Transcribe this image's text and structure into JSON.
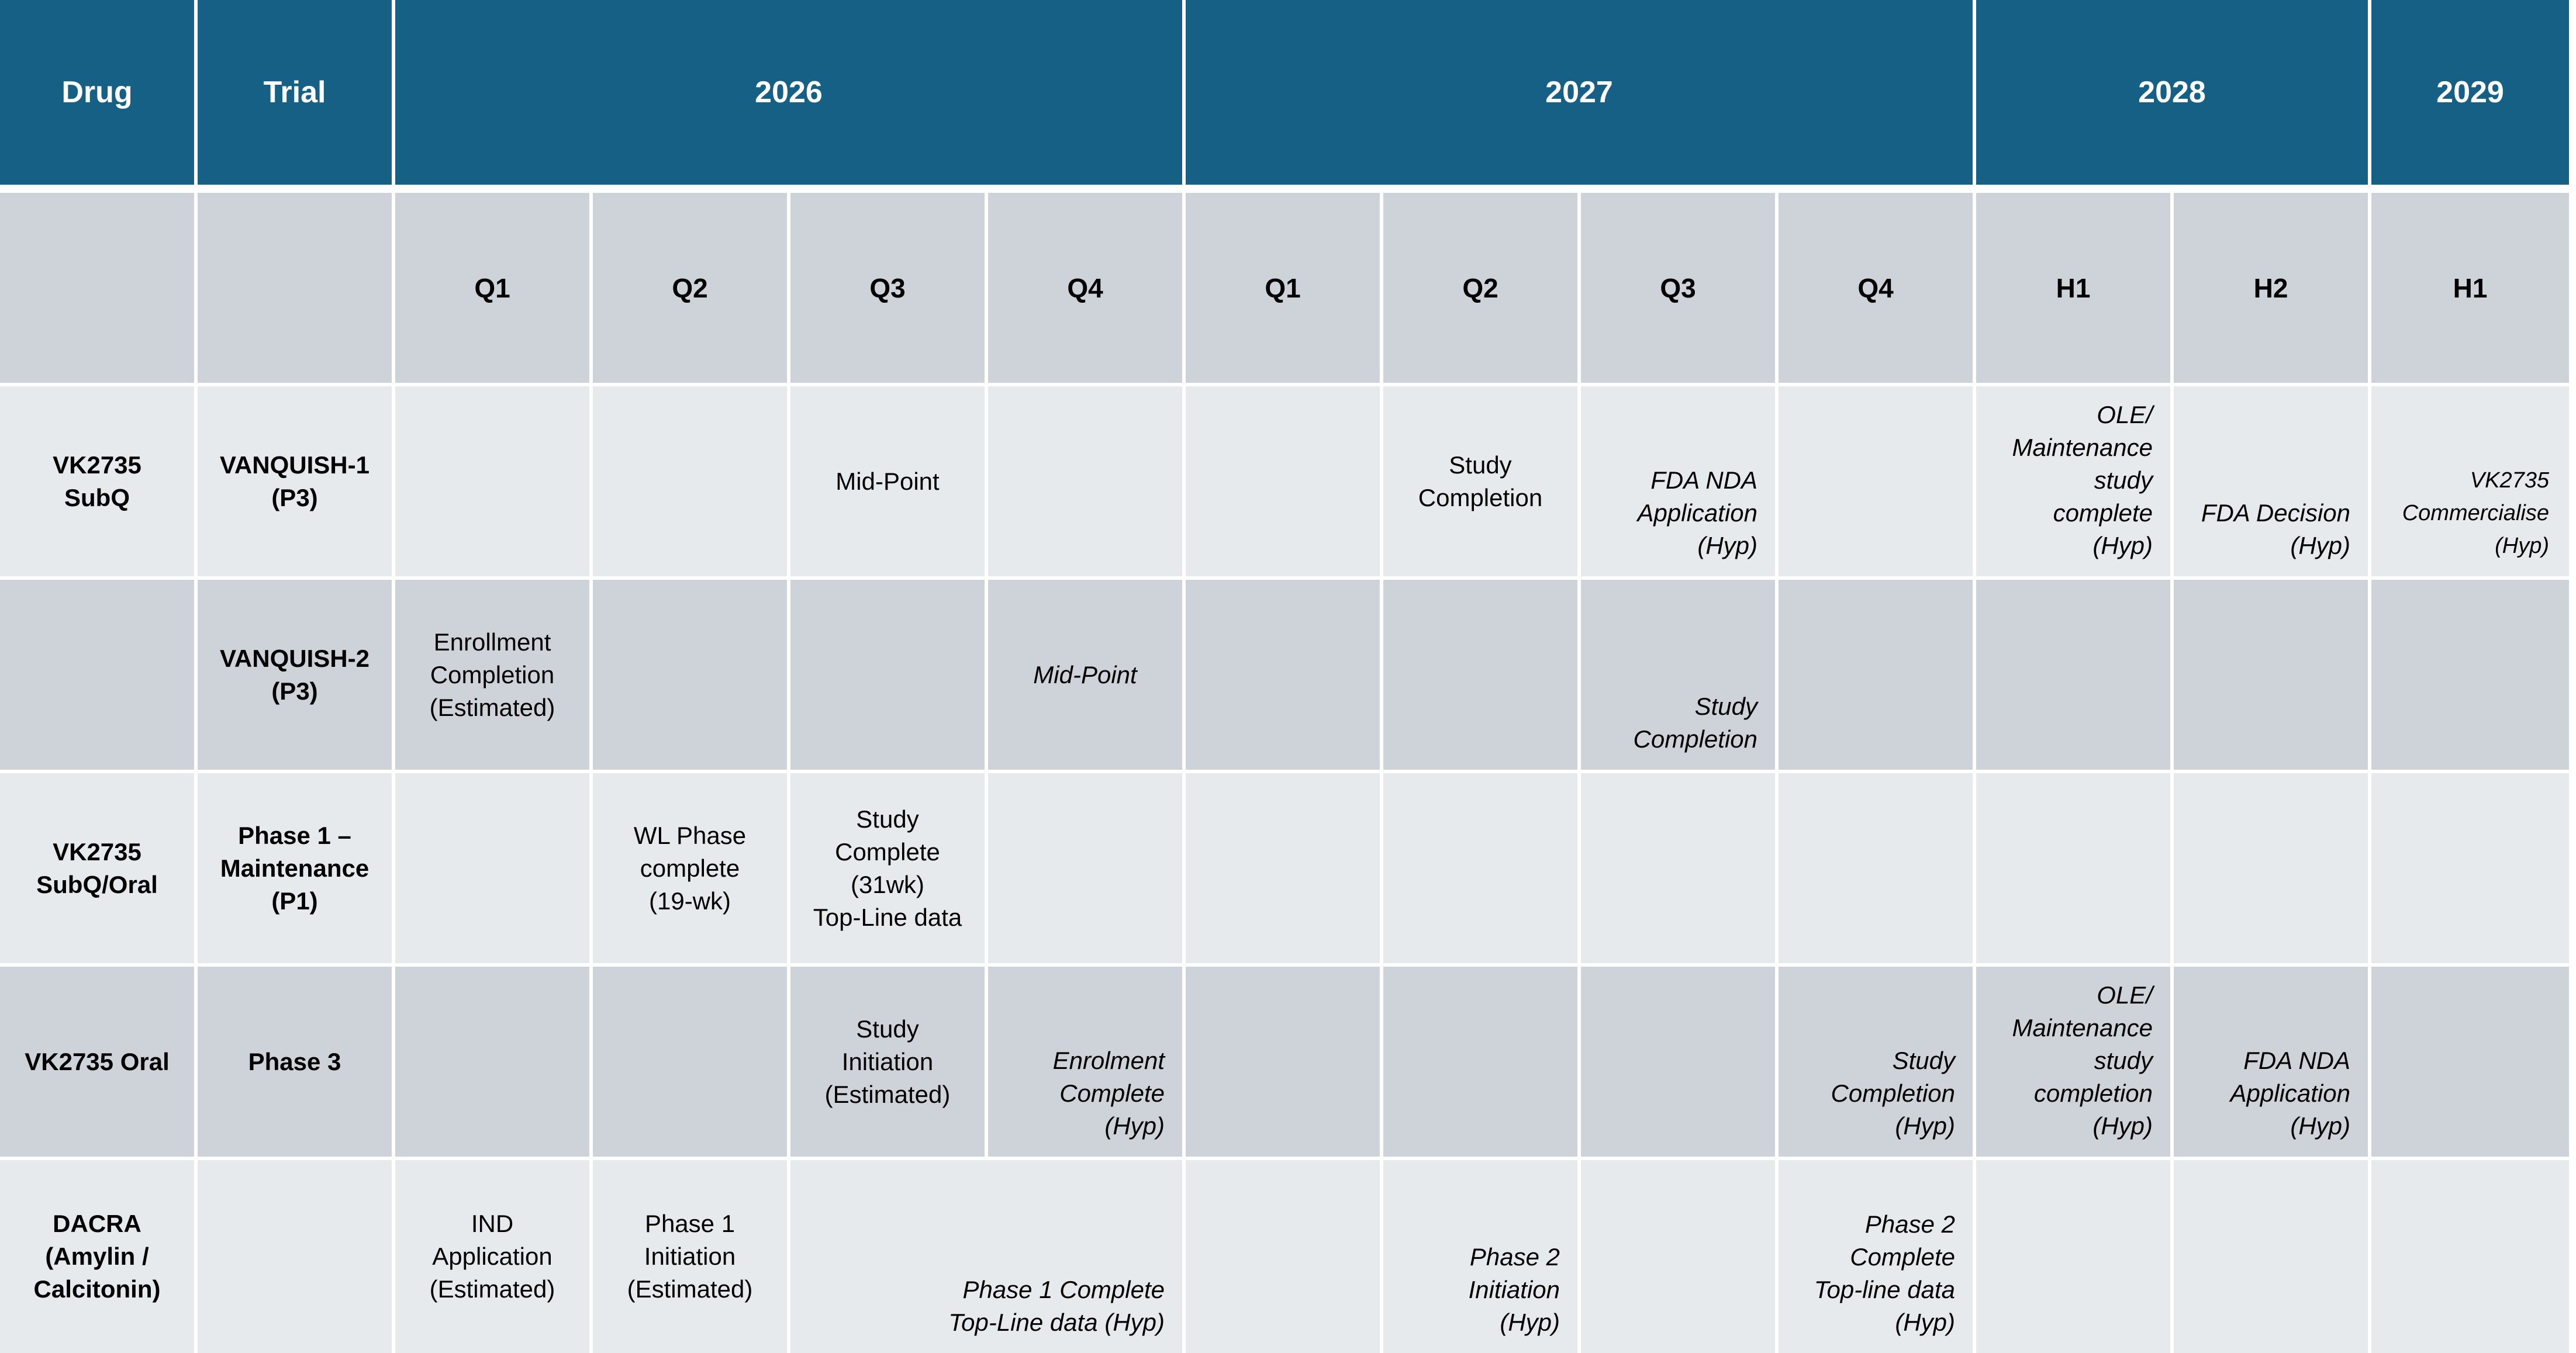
{
  "header": {
    "drug": "Drug",
    "trial": "Trial",
    "years": [
      "2026",
      "2027",
      "2028",
      "2029"
    ]
  },
  "periods": [
    "Q1",
    "Q2",
    "Q3",
    "Q4",
    "Q1",
    "Q2",
    "Q3",
    "Q4",
    "H1",
    "H2",
    "H1"
  ],
  "rows": [
    {
      "drug": "VK2735\nSubQ",
      "trial": "VANQUISH-1\n(P3)",
      "events": {
        "c2026q3": "Mid-Point",
        "c2027q2": "Study\nCompletion",
        "c2027q3": "FDA NDA\nApplication\n(Hyp)",
        "c2028h1": "OLE/\nMaintenance\nstudy\ncomplete\n(Hyp)",
        "c2028h2": "FDA Decision\n(Hyp)",
        "c2029h1": "VK2735\nCommercialise\n(Hyp)"
      }
    },
    {
      "drug": "",
      "trial": "VANQUISH-2\n(P3)",
      "events": {
        "c2026q1": "Enrollment\nCompletion\n(Estimated)",
        "c2026q4": "Mid-Point",
        "c2027q3": "Study\nCompletion"
      }
    },
    {
      "drug": "VK2735\nSubQ/Oral",
      "trial": "Phase 1 –\nMaintenance\n(P1)",
      "events": {
        "c2026q2": "WL Phase\ncomplete\n(19-wk)",
        "c2026q3": "Study\nComplete\n(31wk)\nTop-Line data"
      }
    },
    {
      "drug": "VK2735 Oral",
      "trial": "Phase 3",
      "events": {
        "c2026q3": "Study\nInitiation\n(Estimated)",
        "c2026q4": "Enrolment\nComplete\n(Hyp)",
        "c2027q4": "Study\nCompletion\n(Hyp)",
        "c2028h1": "OLE/\nMaintenance\nstudy\ncompletion\n(Hyp)",
        "c2028h2": "FDA NDA\nApplication\n(Hyp)"
      }
    },
    {
      "drug": "DACRA\n(Amylin /\nCalcitonin)",
      "trial": "",
      "events": {
        "c2026q1": "IND\nApplication\n(Estimated)",
        "c2026q2": "Phase 1\nInitiation\n(Estimated)",
        "c2026q3q4": "Phase 1 Complete\nTop-Line data (Hyp)",
        "c2027q2": "Phase 2\nInitiation\n(Hyp)",
        "c2027q4": "Phase 2\nComplete\nTop-line data\n(Hyp)"
      }
    }
  ],
  "colors": {
    "header_bg": "#176085",
    "period_bg": "#ced2d9",
    "row_light": "#e7eaed",
    "row_dark": "#ced2d9"
  }
}
